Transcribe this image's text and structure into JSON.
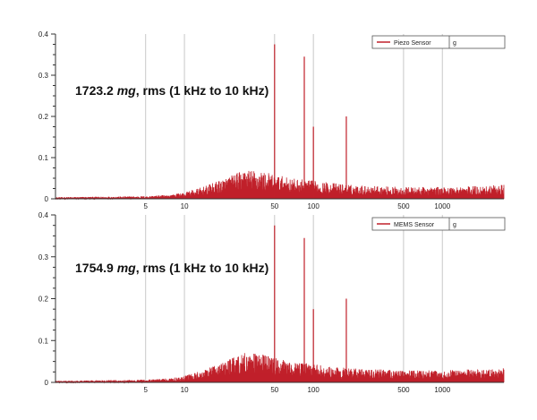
{
  "chart_data": [
    {
      "type": "line",
      "title": "",
      "xlabel": "",
      "ylabel": "",
      "x_scale": "log",
      "xlim": [
        1,
        3000
      ],
      "ylim": [
        0,
        0.4
      ],
      "x_ticks": [
        5,
        10,
        50,
        100,
        500,
        1000
      ],
      "x_tick_labels": [
        "5",
        "10",
        "50",
        "100",
        "500",
        "1000"
      ],
      "y_ticks": [
        0,
        0.1,
        0.2,
        0.3,
        0.4
      ],
      "y_tick_labels": [
        "0",
        "0.1",
        "0.2",
        "0.3",
        "0.4"
      ],
      "grid": true,
      "legend_position": "top-right",
      "legend": {
        "name": "Piezo Sensor",
        "unit": "g"
      },
      "annotation": {
        "value": "1723.2",
        "unit": "mg",
        "text": ", rms (1 kHz to 10 kHz)"
      },
      "series": [
        {
          "name": "Piezo Sensor",
          "color": "#c0202a",
          "envelope": [
            [
              1,
              0.003
            ],
            [
              5,
              0.005
            ],
            [
              8,
              0.008
            ],
            [
              10,
              0.012
            ],
            [
              15,
              0.025
            ],
            [
              20,
              0.038
            ],
            [
              30,
              0.055
            ],
            [
              40,
              0.052
            ],
            [
              50,
              0.045
            ],
            [
              70,
              0.038
            ],
            [
              100,
              0.034
            ],
            [
              200,
              0.026
            ],
            [
              500,
              0.022
            ],
            [
              1000,
              0.022
            ],
            [
              3000,
              0.026
            ]
          ],
          "peaks": [
            [
              50,
              0.375
            ],
            [
              85,
              0.345
            ],
            [
              100,
              0.175
            ],
            [
              180,
              0.2
            ]
          ]
        }
      ]
    },
    {
      "type": "line",
      "title": "",
      "xlabel": "",
      "ylabel": "",
      "x_scale": "log",
      "xlim": [
        1,
        3000
      ],
      "ylim": [
        0,
        0.4
      ],
      "x_ticks": [
        5,
        10,
        50,
        100,
        500,
        1000
      ],
      "x_tick_labels": [
        "5",
        "10",
        "50",
        "100",
        "500",
        "1000"
      ],
      "y_ticks": [
        0,
        0.1,
        0.2,
        0.3,
        0.4
      ],
      "y_tick_labels": [
        "0",
        "0.1",
        "0.2",
        "0.3",
        "0.4"
      ],
      "grid": true,
      "legend_position": "top-right",
      "legend": {
        "name": "MEMS Sensor",
        "unit": "g"
      },
      "annotation": {
        "value": "1754.9",
        "unit": "mg",
        "text": ", rms (1 kHz to 10 kHz)"
      },
      "series": [
        {
          "name": "MEMS Sensor",
          "color": "#c0202a",
          "envelope": [
            [
              1,
              0.003
            ],
            [
              5,
              0.005
            ],
            [
              8,
              0.008
            ],
            [
              10,
              0.012
            ],
            [
              15,
              0.025
            ],
            [
              20,
              0.038
            ],
            [
              30,
              0.055
            ],
            [
              40,
              0.052
            ],
            [
              50,
              0.045
            ],
            [
              70,
              0.038
            ],
            [
              100,
              0.034
            ],
            [
              200,
              0.026
            ],
            [
              500,
              0.022
            ],
            [
              1000,
              0.022
            ],
            [
              3000,
              0.026
            ]
          ],
          "peaks": [
            [
              50,
              0.375
            ],
            [
              85,
              0.345
            ],
            [
              100,
              0.175
            ],
            [
              180,
              0.2
            ]
          ]
        }
      ]
    }
  ]
}
